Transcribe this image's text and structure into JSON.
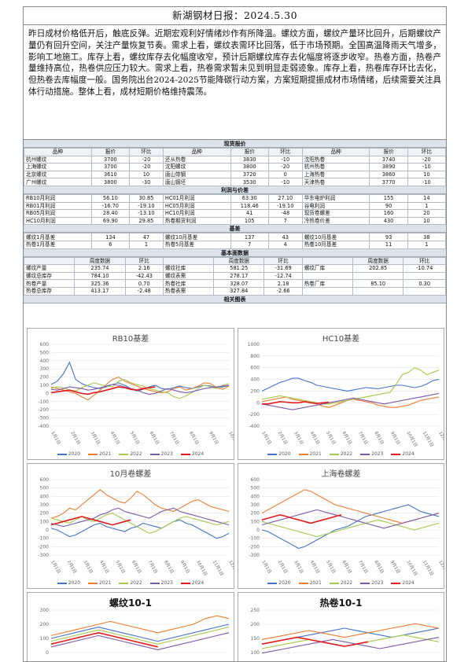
{
  "report": {
    "title": "新湖钢材日报：2024.5.30",
    "summary": "昨日成材价格低开后，触底反弹。近期宏观利好情绪炒作有所降温。螺纹方面，螺纹产量环比回升，后期螺纹产量仍有回升空间，关注产量恢复节奏。需求上看，螺纹表需环比回落，低于市场预期。全国高温降雨天气增多，影响工地施工。库存上看，螺纹库存去化幅度收窄，预计后期螺纹库存去化幅度将逐步收窄。热卷方面，热卷产量维持高位，热卷供应压力较大。需求上看，热卷需求暂未见到明显走弱迹象。库存上看，热卷库存环比去化，但热卷去库幅度一般。国务院出台2024-2025节能降碳行动方案，方案短期提振成材市场情绪，后续需要关注具体行动措施。整体上看，成材短期价格维持震荡。"
  },
  "spot": {
    "section": "现货报价",
    "headers": [
      "品种",
      "报价",
      "环比",
      "品种",
      "报价",
      "环比",
      "品种",
      "报价",
      "环比"
    ],
    "rows": [
      [
        "杭州螺纹",
        "3700",
        "-20",
        "还从热卷",
        "3830",
        "-10",
        "沈阳热卷",
        "3740",
        "-20"
      ],
      [
        "上海螺纹",
        "3700",
        "-20",
        "沈阳螺纹",
        "3800",
        "-20",
        "杭州热卷",
        "3890",
        "-10"
      ],
      [
        "北京螺纹",
        "3610",
        "10",
        "唐山带钢",
        "3720",
        "0",
        "上海热卷",
        "3860",
        "10"
      ],
      [
        "广州螺纹",
        "3800",
        "-30",
        "唐山钢坯",
        "3530",
        "-10",
        "天津热卷",
        "3770",
        "-10"
      ]
    ]
  },
  "profit": {
    "section": "利润与价差",
    "rows": [
      [
        "RB10月利润",
        "56.10",
        "30.85",
        "HC01月利润",
        "63.30",
        "27.10",
        "华东电炉利润",
        "155",
        "14"
      ],
      [
        "RB01月利润",
        "-16.70",
        "-19.10",
        "HC05月利润",
        "118.46",
        "-19.10",
        "谷电利润",
        "90",
        "1"
      ],
      [
        "RB05月利润",
        "28.40",
        "-13.10",
        "HC10月利润",
        "41",
        "-48",
        "现货卷螺差",
        "160",
        "20"
      ],
      [
        "HC10月利润",
        "69.90",
        "29.85",
        "热卷期货利润",
        "105",
        "7",
        "冷热卷价差",
        "430",
        "10"
      ]
    ]
  },
  "basis": {
    "section": "基差",
    "rows": [
      [
        "螺纹1月基差",
        "134",
        "47",
        "螺纹10月基差",
        "137",
        "43",
        "螺纹10月基差",
        "93",
        "38"
      ],
      [
        "热卷1月基差",
        "6",
        "1",
        "热卷5月基差",
        "7",
        "4",
        "热卷10月基差",
        "11",
        "1"
      ]
    ]
  },
  "fundamentals": {
    "section": "基本面数据",
    "headers": [
      "",
      "周度数据",
      "环比",
      "",
      "周度数据",
      "环比",
      "",
      "周度数据",
      "环比"
    ],
    "rows": [
      [
        "螺纹产量",
        "235.74",
        "2.16",
        "螺纹社库",
        "581.25",
        "-31.69",
        "螺纹厂库",
        "202.85",
        "-10.74"
      ],
      [
        "螺纹总库存",
        "784.10",
        "-42.43",
        "螺纹表需",
        "278.17",
        "-12.74",
        "",
        "",
        ""
      ],
      [
        "热卷产量",
        "325.36",
        "0.70",
        "热卷社库",
        "328.07",
        "2.18",
        "热卷厂库",
        "85.10",
        "0.30"
      ],
      [
        "热卷总库存",
        "413.17",
        "-2.48",
        "热卷表需",
        "327.84",
        "-2.66",
        "",
        "",
        ""
      ]
    ]
  },
  "charts_section": "相关图表",
  "colors": {
    "y2020": "#4472c4",
    "y2021": "#ed7d31",
    "y2022": "#a5c94a",
    "y2023": "#7b5aa6",
    "y2024": "#e31a1c"
  },
  "chart_data": [
    {
      "type": "line",
      "title": "RB10基差",
      "ylim": [
        -400,
        600
      ],
      "yticks": [
        "600",
        "500",
        "400",
        "300",
        "200",
        "100",
        "0",
        "-100",
        "-200",
        "-300",
        "-400"
      ],
      "xticks": [
        "1月1日",
        "2月1日",
        "3月1日",
        "4月1日",
        "5月1日",
        "6月1日",
        "7月1日",
        "8月1日",
        "9月1日",
        "10月1日"
      ],
      "series": [
        {
          "name": "2020",
          "values": [
            110,
            150,
            240,
            380,
            170,
            120,
            90,
            70,
            60,
            80,
            110,
            130,
            100,
            60,
            30,
            50,
            80,
            100,
            60,
            50,
            70,
            90,
            70,
            60,
            80,
            100,
            90,
            70,
            80,
            100
          ]
        },
        {
          "name": "2021",
          "values": [
            80,
            60,
            40,
            20,
            0,
            -40,
            -80,
            -20,
            40,
            110,
            170,
            200,
            150,
            120,
            90,
            60,
            40,
            20,
            10,
            20,
            60,
            80,
            40,
            60,
            90,
            130,
            120,
            70,
            50,
            90
          ]
        },
        {
          "name": "2022",
          "values": [
            60,
            80,
            70,
            40,
            30,
            70,
            100,
            130,
            110,
            90,
            80,
            150,
            170,
            130,
            110,
            90,
            60,
            40,
            20,
            10,
            -40,
            -60,
            -30,
            10,
            60,
            100,
            80,
            60,
            100,
            120
          ]
        },
        {
          "name": "2023",
          "values": [
            50,
            40,
            60,
            80,
            70,
            60,
            40,
            50,
            70,
            90,
            110,
            100,
            80,
            60,
            40,
            10,
            -10,
            0,
            30,
            60,
            40,
            20,
            10,
            20,
            40,
            60,
            70,
            80,
            90,
            100
          ]
        },
        {
          "name": "2024",
          "values": [
            10,
            20,
            30,
            40,
            20,
            0,
            -10,
            10,
            20,
            40,
            60,
            80,
            70,
            50,
            40,
            60,
            70,
            80
          ]
        }
      ]
    },
    {
      "type": "line",
      "title": "HC10基差",
      "ylim": [
        -400,
        1000
      ],
      "yticks": [
        "1000",
        "800",
        "600",
        "400",
        "200",
        "0",
        "-200",
        "-400"
      ],
      "xticks": [
        "1月1日",
        "2月1日",
        "3月1日",
        "4月1日",
        "5月1日",
        "6月1日",
        "7月1日",
        "8月1日",
        "9月1日",
        "10月1日",
        "11月1日",
        "12月1日"
      ],
      "series": [
        {
          "name": "2020",
          "values": [
            200,
            250,
            300,
            350,
            380,
            420,
            420,
            380,
            350,
            300,
            280,
            260,
            240,
            220,
            200,
            220,
            240,
            260,
            250,
            240,
            260,
            280,
            300,
            300,
            280,
            260,
            280,
            320,
            380,
            400
          ]
        },
        {
          "name": "2021",
          "values": [
            20,
            40,
            60,
            80,
            100,
            60,
            40,
            20,
            0,
            -20,
            -60,
            -80,
            -40,
            0,
            40,
            60,
            40,
            20,
            0,
            -40,
            -60,
            -80,
            -80,
            -60,
            -40,
            0,
            40,
            60,
            80,
            100
          ]
        },
        {
          "name": "2022",
          "values": [
            60,
            80,
            100,
            120,
            100,
            80,
            60,
            40,
            20,
            0,
            -20,
            -20,
            0,
            20,
            40,
            60,
            80,
            100,
            120,
            140,
            160,
            180,
            320,
            480,
            520,
            600,
            560,
            480,
            520,
            560
          ]
        },
        {
          "name": "2023",
          "values": [
            -20,
            -40,
            -60,
            -80,
            -100,
            -120,
            -100,
            -80,
            -60,
            -40,
            -20,
            0,
            20,
            40,
            60,
            80,
            60,
            40,
            20,
            0,
            -20,
            0,
            20,
            40,
            60,
            80,
            100,
            120,
            140,
            160
          ]
        },
        {
          "name": "2024",
          "values": [
            -20,
            -20,
            0,
            20,
            10,
            0,
            0,
            20,
            0,
            -10,
            0,
            10
          ]
        }
      ]
    },
    {
      "type": "line",
      "title": "10月卷螺差",
      "ylim": [
        -300,
        600
      ],
      "yticks": [
        "600",
        "500",
        "400",
        "300",
        "200",
        "100",
        "0",
        "-100",
        "-200",
        "-300"
      ],
      "xticks": [
        "1月1日",
        "2月1日",
        "3月1日",
        "4月1日",
        "5月1日",
        "6月1日",
        "7月1日",
        "8月1日",
        "9月1日",
        "10月1日",
        "11月1日",
        "12月1日"
      ],
      "series": [
        {
          "name": "2020",
          "values": [
            20,
            0,
            -40,
            -80,
            -60,
            -20,
            20,
            60,
            80,
            40,
            20,
            0,
            -20,
            20,
            40,
            80,
            60,
            40,
            20,
            60,
            100,
            120,
            80,
            60,
            20,
            -20,
            -60,
            -100,
            -80,
            -40
          ]
        },
        {
          "name": "2021",
          "values": [
            140,
            160,
            200,
            260,
            240,
            300,
            360,
            420,
            480,
            420,
            380,
            340,
            320,
            380,
            460,
            420,
            360,
            300,
            260,
            240,
            220,
            260,
            300,
            340,
            360,
            320,
            280,
            260,
            240,
            220
          ]
        },
        {
          "name": "2022",
          "values": [
            140,
            120,
            100,
            80,
            120,
            160,
            120,
            100,
            140,
            180,
            200,
            160,
            120,
            80,
            40,
            0,
            -40,
            -20,
            20,
            60,
            100,
            140,
            160,
            140,
            120,
            100,
            80,
            60,
            80,
            100
          ]
        },
        {
          "name": "2023",
          "values": [
            80,
            60,
            40,
            60,
            80,
            100,
            120,
            140,
            180,
            200,
            240,
            260,
            220,
            200,
            180,
            160,
            140,
            180,
            220,
            240,
            260,
            220,
            200,
            180,
            160,
            140,
            120,
            100,
            80,
            60
          ]
        },
        {
          "name": "2024",
          "values": [
            60,
            80,
            100,
            120,
            140,
            160,
            140,
            120,
            100,
            80,
            60,
            80,
            100,
            120
          ]
        }
      ]
    },
    {
      "type": "line",
      "title": "上海卷螺差",
      "ylim": [
        -300,
        600
      ],
      "yticks": [
        "600",
        "500",
        "400",
        "300",
        "200",
        "100",
        "0",
        "-100",
        "-200",
        "-300"
      ],
      "xticks": [
        "1月1日",
        "2月1日",
        "3月1日",
        "4月1日",
        "5月1日",
        "6月1日",
        "7月1日",
        "8月1日",
        "9月1日",
        "10月1日",
        "11月1日",
        "12月1日"
      ],
      "series": [
        {
          "name": "2020",
          "values": [
            0,
            -20,
            -60,
            -100,
            -140,
            -180,
            -220,
            -200,
            -160,
            -120,
            -80,
            -40,
            0,
            20,
            40,
            80,
            120,
            160,
            180,
            200,
            220,
            240,
            260,
            280,
            300,
            260,
            220,
            200,
            180,
            160
          ]
        },
        {
          "name": "2021",
          "values": [
            200,
            240,
            280,
            320,
            360,
            400,
            440,
            480,
            460,
            420,
            380,
            340,
            300,
            280,
            260,
            240,
            220,
            200,
            180,
            160,
            140,
            120,
            100,
            80,
            100,
            120,
            140,
            160,
            180,
            200
          ]
        },
        {
          "name": "2022",
          "values": [
            100,
            80,
            60,
            40,
            20,
            0,
            -20,
            -40,
            -60,
            -80,
            -60,
            -40,
            -20,
            0,
            20,
            40,
            60,
            80,
            100,
            120,
            100,
            80,
            60,
            40,
            20,
            0,
            20,
            40,
            60,
            80
          ]
        },
        {
          "name": "2023",
          "values": [
            60,
            80,
            100,
            120,
            140,
            160,
            180,
            200,
            220,
            240,
            220,
            200,
            180,
            160,
            140,
            120,
            100,
            80,
            60,
            40,
            20,
            40,
            60,
            80,
            100,
            120,
            140,
            160,
            180,
            200
          ]
        },
        {
          "name": "2024",
          "values": [
            120,
            140,
            160,
            180,
            160,
            140,
            120,
            100,
            80,
            100,
            120,
            140,
            160,
            180
          ]
        }
      ]
    },
    {
      "type": "line",
      "title": "螺纹10-1",
      "ylim": [
        -100,
        300
      ],
      "yticks": [
        "300",
        "200",
        "100",
        "0",
        "-100"
      ],
      "xticks": [],
      "series": [
        {
          "name": "2020",
          "values": [
            100,
            120,
            140,
            160,
            180,
            160,
            140,
            120,
            100,
            80,
            100,
            120,
            140,
            160,
            180,
            200
          ]
        },
        {
          "name": "2021",
          "values": [
            120,
            140,
            160,
            180,
            200,
            220,
            200,
            180,
            160,
            140,
            160,
            180,
            200,
            240,
            260,
            240
          ]
        },
        {
          "name": "2022",
          "values": [
            80,
            100,
            120,
            140,
            160,
            140,
            120,
            100,
            80,
            60,
            80,
            100,
            120,
            140,
            160,
            180
          ]
        },
        {
          "name": "2023",
          "values": [
            40,
            60,
            80,
            100,
            120,
            100,
            80,
            60,
            40,
            20,
            40,
            60,
            80,
            100,
            120,
            140
          ]
        },
        {
          "name": "2024",
          "values": [
            60,
            80,
            100,
            120,
            140,
            120,
            100,
            80,
            60,
            40
          ]
        }
      ]
    },
    {
      "type": "line",
      "title": "热卷10-1",
      "ylim": [
        0,
        250
      ],
      "yticks": [
        "250",
        "200",
        "150",
        "100",
        "50"
      ],
      "xticks": [],
      "series": [
        {
          "name": "2020",
          "values": [
            100,
            110,
            120,
            130,
            140,
            150,
            160,
            170,
            160,
            150,
            140,
            130,
            140,
            150,
            160,
            170
          ]
        },
        {
          "name": "2021",
          "values": [
            120,
            130,
            140,
            150,
            160,
            150,
            140,
            130,
            140,
            150,
            160,
            170,
            180,
            190,
            180,
            170
          ]
        },
        {
          "name": "2022",
          "values": [
            80,
            90,
            100,
            110,
            120,
            110,
            100,
            90,
            100,
            110,
            120,
            130,
            140,
            130,
            120,
            110
          ]
        },
        {
          "name": "2023",
          "values": [
            60,
            70,
            80,
            90,
            100,
            110,
            120,
            110,
            100,
            90,
            80,
            90,
            100,
            110,
            120,
            130
          ]
        },
        {
          "name": "2024",
          "values": [
            100,
            110,
            120,
            130,
            120,
            110,
            100,
            90,
            100,
            110
          ]
        }
      ]
    }
  ]
}
